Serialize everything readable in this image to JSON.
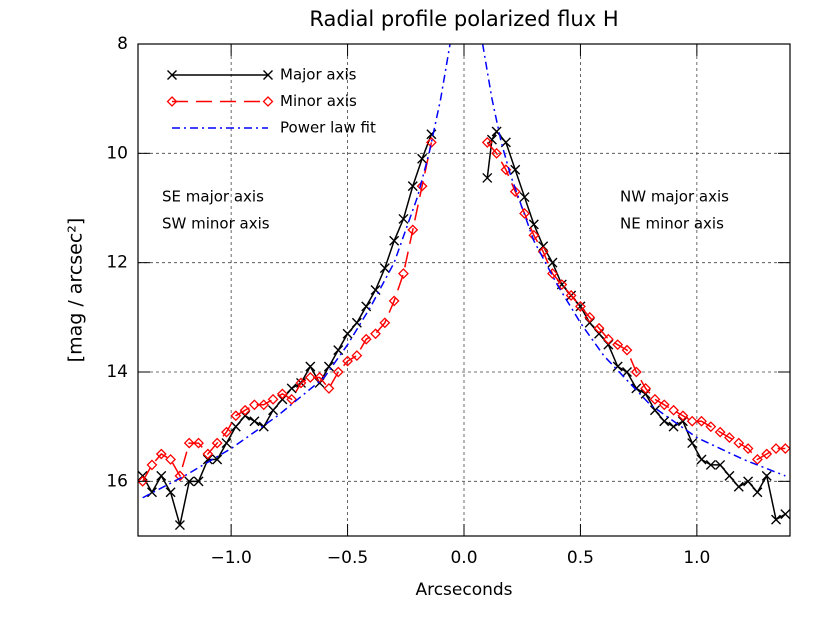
{
  "chart_data": {
    "type": "line",
    "title": "Radial profile polarized flux H",
    "x_label": "Arcseconds",
    "y_label": "[mag / arcsec²]",
    "xlim": [
      -1.4,
      1.4
    ],
    "ylim": [
      8,
      17
    ],
    "y_inverted": true,
    "xticks": [
      {
        "value": -1.0,
        "label": "−1.0"
      },
      {
        "value": -0.5,
        "label": "−0.5"
      },
      {
        "value": 0,
        "label": "0.0"
      },
      {
        "value": 0.5,
        "label": "0.5"
      },
      {
        "value": 1,
        "label": "1.0"
      }
    ],
    "yticks": [
      8,
      10,
      12,
      14,
      16
    ],
    "grid": true,
    "legend": "upper left",
    "annotations": [
      "SE major axis",
      "SW minor axis",
      "NW major axis",
      "NE minor axis"
    ],
    "series": [
      {
        "name": "Major axis",
        "color": "#000000",
        "linestyle": "solid",
        "marker": "x",
        "x": [
          -1.38,
          -1.34,
          -1.3,
          -1.26,
          -1.22,
          -1.18,
          -1.14,
          -1.1,
          -1.06,
          -1.02,
          -0.98,
          -0.94,
          -0.9,
          -0.86,
          -0.82,
          -0.78,
          -0.74,
          -0.7,
          -0.66,
          -0.62,
          -0.58,
          -0.54,
          -0.5,
          -0.46,
          -0.42,
          -0.38,
          -0.34,
          -0.3,
          -0.26,
          -0.22,
          -0.18,
          -0.14,
          0,
          0.1,
          0.12,
          0.14,
          0.18,
          0.22,
          0.26,
          0.3,
          0.34,
          0.38,
          0.42,
          0.46,
          0.5,
          0.54,
          0.58,
          0.62,
          0.66,
          0.7,
          0.74,
          0.78,
          0.82,
          0.86,
          0.9,
          0.94,
          0.98,
          1.02,
          1.06,
          1.1,
          1.14,
          1.18,
          1.22,
          1.26,
          1.3,
          1.34,
          1.38
        ],
        "values": [
          15.9,
          16.2,
          15.9,
          16.2,
          16.8,
          16.0,
          16.0,
          15.6,
          15.6,
          15.3,
          15.0,
          14.8,
          14.9,
          15.0,
          14.7,
          14.5,
          14.3,
          14.2,
          13.9,
          14.2,
          13.9,
          13.6,
          13.3,
          13.1,
          12.8,
          12.5,
          12.1,
          11.6,
          11.2,
          10.6,
          10.1,
          9.65,
          null,
          10.45,
          9.75,
          9.6,
          9.8,
          10.3,
          10.8,
          11.3,
          11.7,
          12.0,
          12.4,
          12.6,
          12.8,
          13.1,
          13.3,
          13.5,
          13.9,
          14.0,
          14.3,
          14.4,
          14.7,
          14.9,
          15.0,
          14.9,
          15.3,
          15.6,
          15.7,
          15.7,
          15.9,
          16.1,
          16.0,
          16.2,
          15.9,
          16.7,
          16.6
        ]
      },
      {
        "name": "Minor axis",
        "color": "#ff0000",
        "linestyle": "dashed",
        "marker": "diamond",
        "x": [
          -1.38,
          -1.34,
          -1.3,
          -1.26,
          -1.22,
          -1.18,
          -1.14,
          -1.1,
          -1.06,
          -1.02,
          -0.98,
          -0.94,
          -0.9,
          -0.86,
          -0.82,
          -0.78,
          -0.74,
          -0.7,
          -0.66,
          -0.62,
          -0.58,
          -0.54,
          -0.5,
          -0.46,
          -0.42,
          -0.38,
          -0.34,
          -0.3,
          -0.26,
          -0.22,
          -0.18,
          -0.14,
          0,
          0.1,
          0.14,
          0.18,
          0.22,
          0.26,
          0.3,
          0.34,
          0.38,
          0.42,
          0.46,
          0.5,
          0.54,
          0.58,
          0.62,
          0.66,
          0.7,
          0.74,
          0.78,
          0.82,
          0.86,
          0.9,
          0.94,
          0.98,
          1.02,
          1.06,
          1.1,
          1.14,
          1.18,
          1.22,
          1.26,
          1.3,
          1.34,
          1.38
        ],
        "values": [
          16.0,
          15.7,
          15.5,
          15.6,
          15.9,
          15.3,
          15.3,
          15.5,
          15.3,
          15.1,
          14.8,
          14.7,
          14.6,
          14.6,
          14.5,
          14.4,
          14.5,
          14.2,
          14.1,
          14.1,
          14.3,
          14.0,
          13.8,
          13.7,
          13.4,
          13.3,
          13.1,
          12.7,
          12.2,
          11.4,
          10.6,
          9.8,
          null,
          9.8,
          10.0,
          10.3,
          10.7,
          11.1,
          11.5,
          11.8,
          12.2,
          12.4,
          12.6,
          12.8,
          13.0,
          13.2,
          13.4,
          13.5,
          13.6,
          14.0,
          14.3,
          14.5,
          14.6,
          14.7,
          14.8,
          14.9,
          14.9,
          15.0,
          15.1,
          15.2,
          15.3,
          15.4,
          15.6,
          15.5,
          15.4,
          15.4
        ]
      },
      {
        "name": "Power law fit",
        "color": "#0000ff",
        "linestyle": "dashdot",
        "marker": null,
        "x": [
          -1.38,
          -1.2,
          -1.0,
          -0.8,
          -0.6,
          -0.5,
          -0.4,
          -0.3,
          -0.2,
          -0.15,
          -0.1,
          -0.06,
          0,
          0.08,
          0.12,
          0.16,
          0.2,
          0.3,
          0.4,
          0.5,
          0.6,
          0.8,
          1.0,
          1.2,
          1.38
        ],
        "values": [
          16.3,
          15.9,
          15.4,
          14.8,
          14.1,
          13.5,
          12.8,
          12.0,
          10.8,
          10.0,
          9.0,
          8.0,
          null,
          8.0,
          9.0,
          9.8,
          10.4,
          11.6,
          12.4,
          13.1,
          13.7,
          14.6,
          15.2,
          15.6,
          15.9
        ]
      }
    ]
  }
}
